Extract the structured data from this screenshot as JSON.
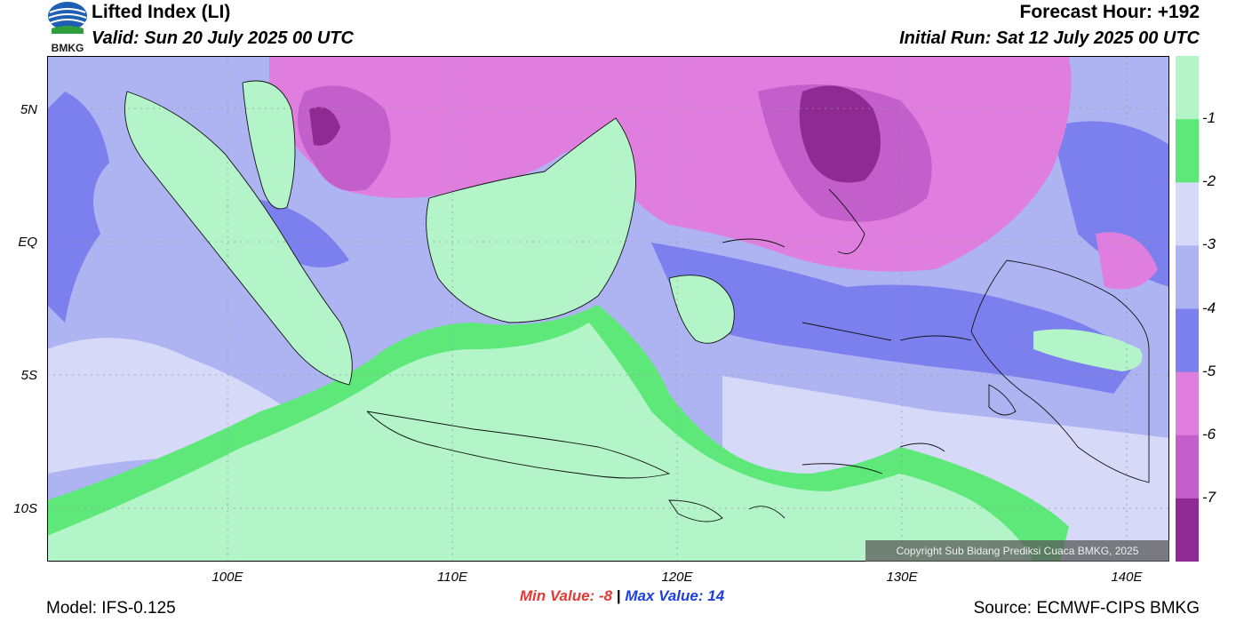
{
  "header": {
    "title": "Lifted Index (LI)",
    "valid": "Valid: Sun 20 July 2025 00 UTC",
    "forecast_hour": "Forecast Hour: +192",
    "initial_run": "Initial Run: Sat 12 July 2025 00 UTC",
    "logo_text": "BMKG"
  },
  "axes": {
    "lat_labels": [
      "5N",
      "EQ",
      "5S",
      "10S"
    ],
    "lon_labels": [
      "100E",
      "110E",
      "120E",
      "130E",
      "140E"
    ]
  },
  "stats": {
    "min_label": "Min Value:",
    "min_value": "-8",
    "separator": "|",
    "max_label": "Max Value:",
    "max_value": "14"
  },
  "footer": {
    "model": "Model: IFS-0.125",
    "source": "Source: ECMWF-CIPS BMKG",
    "copyright": "Copyright Sub Bidang Prediksi Cuaca BMKG, 2025"
  },
  "colorbar": {
    "labels": [
      "-1",
      "-2",
      "-3",
      "-4",
      "-5",
      "-6",
      "-7"
    ],
    "colors": [
      "#b3f5c9",
      "#5ee87a",
      "#d6d9f7",
      "#aeb3f2",
      "#7b80ee",
      "#df7ede",
      "#c35fcb",
      "#8e2a91"
    ]
  },
  "map_colors": {
    "background": "#aeb3f2",
    "land_green": "#b3f5c9",
    "band_green": "#5ee87a",
    "light_blue": "#d6d9f7",
    "mid_blue": "#7b80ee",
    "magenta": "#df7ede",
    "purple": "#c35fcb",
    "deep_purple": "#8e2a91"
  }
}
